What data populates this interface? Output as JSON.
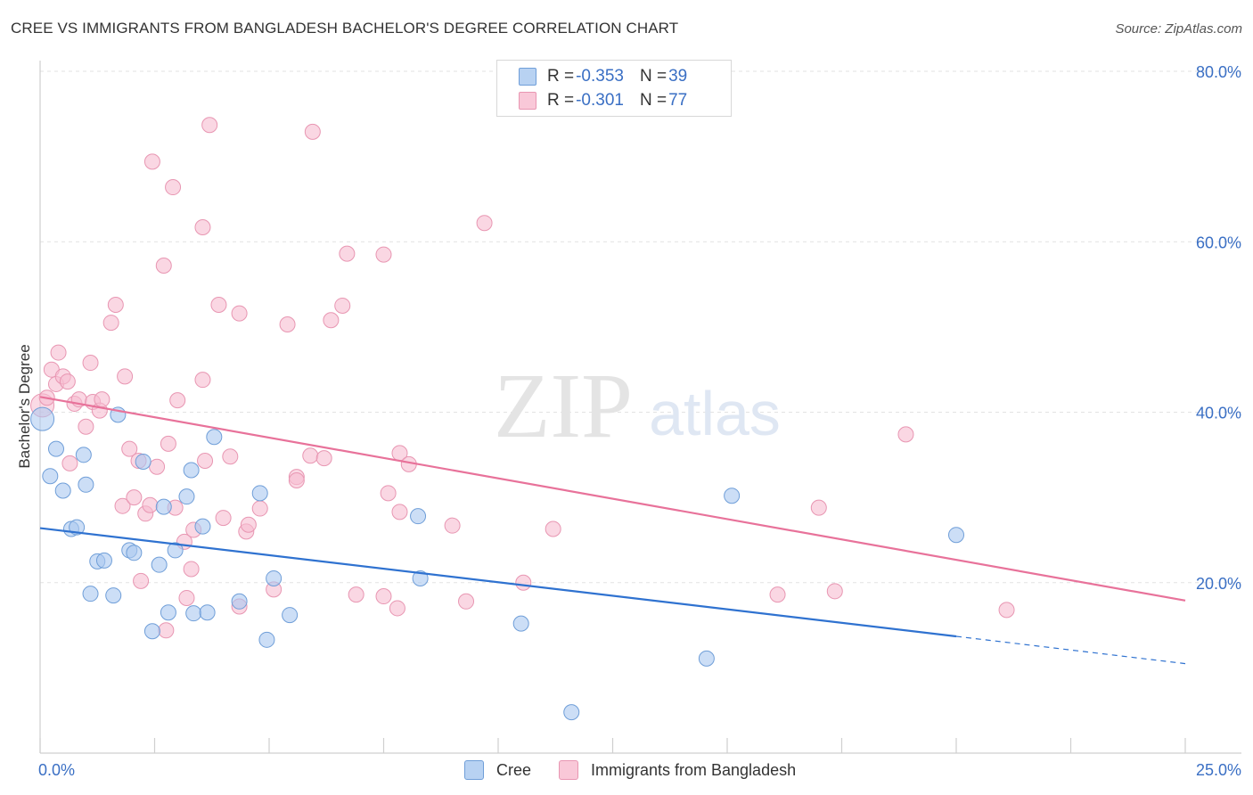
{
  "title": "CREE VS IMMIGRANTS FROM BANGLADESH BACHELOR'S DEGREE CORRELATION CHART",
  "source": "Source: ZipAtlas.com",
  "watermark": {
    "zip": "ZIP",
    "atlas": "atlas"
  },
  "legend": {
    "cree": {
      "r_label": "R = ",
      "r_value": "-0.353",
      "n_label": "N = ",
      "n_value": "39"
    },
    "bangladesh": {
      "r_label": "R = ",
      "r_value": "-0.301",
      "n_label": "N = ",
      "n_value": "77"
    }
  },
  "bottom_legend": {
    "cree": "Cree",
    "bangladesh": "Immigrants from Bangladesh"
  },
  "colors": {
    "cree_fill": "#aac8f0",
    "cree_stroke": "#6f9ed8",
    "cree_line": "#2f72d0",
    "bangladesh_fill": "#f7bcd0",
    "bangladesh_stroke": "#e896b2",
    "bangladesh_line": "#e8729a",
    "axis_value": "#3a6fc4"
  },
  "chart_data": {
    "type": "scatter",
    "title": "CREE VS IMMIGRANTS FROM BANGLADESH BACHELOR'S DEGREE CORRELATION CHART",
    "xlabel": "",
    "ylabel": "Bachelor's Degree",
    "xlim": [
      0,
      25
    ],
    "ylim": [
      0,
      80
    ],
    "x_tick_labels": [
      {
        "value": 0,
        "label": "0.0%"
      },
      {
        "value": 25,
        "label": "25.0%"
      }
    ],
    "y_tick_labels": [
      {
        "value": 20,
        "label": "20.0%"
      },
      {
        "value": 40,
        "label": "40.0%"
      },
      {
        "value": 60,
        "label": "60.0%"
      },
      {
        "value": 80,
        "label": "80.0%"
      }
    ],
    "grid": true,
    "legend_position": "top-center",
    "series": [
      {
        "name": "Cree",
        "R": -0.353,
        "N": 39,
        "trend": {
          "x0": 0.0,
          "y0": 26.4,
          "x1": 20.0,
          "y1": 13.7,
          "dash_to_x": 25.0,
          "dash_to_y": 10.5
        },
        "points": [
          [
            0.05,
            39.2
          ],
          [
            0.22,
            32.5
          ],
          [
            0.35,
            35.7
          ],
          [
            0.5,
            30.8
          ],
          [
            0.68,
            26.3
          ],
          [
            0.8,
            26.5
          ],
          [
            0.95,
            35.0
          ],
          [
            1.0,
            31.5
          ],
          [
            1.1,
            18.7
          ],
          [
            1.25,
            22.5
          ],
          [
            1.4,
            22.6
          ],
          [
            1.6,
            18.5
          ],
          [
            1.7,
            39.7
          ],
          [
            1.95,
            23.8
          ],
          [
            2.05,
            23.5
          ],
          [
            2.25,
            34.2
          ],
          [
            2.45,
            14.3
          ],
          [
            2.6,
            22.1
          ],
          [
            2.7,
            28.9
          ],
          [
            2.8,
            16.5
          ],
          [
            2.95,
            23.8
          ],
          [
            3.2,
            30.1
          ],
          [
            3.3,
            33.2
          ],
          [
            3.35,
            16.4
          ],
          [
            3.55,
            26.6
          ],
          [
            3.65,
            16.5
          ],
          [
            3.8,
            37.1
          ],
          [
            4.35,
            17.8
          ],
          [
            4.8,
            30.5
          ],
          [
            4.95,
            13.3
          ],
          [
            5.1,
            20.5
          ],
          [
            5.45,
            16.2
          ],
          [
            8.25,
            27.8
          ],
          [
            8.3,
            20.5
          ],
          [
            10.5,
            15.2
          ],
          [
            11.6,
            4.8
          ],
          [
            14.55,
            11.1
          ],
          [
            15.1,
            30.2
          ],
          [
            20.0,
            25.6
          ]
        ]
      },
      {
        "name": "Immigrants from Bangladesh",
        "R": -0.301,
        "N": 77,
        "trend": {
          "x0": 0.0,
          "y0": 41.8,
          "x1": 25.0,
          "y1": 17.9
        },
        "points": [
          [
            0.05,
            40.8
          ],
          [
            0.15,
            41.7
          ],
          [
            0.25,
            45.0
          ],
          [
            0.35,
            43.3
          ],
          [
            0.4,
            47.0
          ],
          [
            0.5,
            44.2
          ],
          [
            0.6,
            43.6
          ],
          [
            0.65,
            34.0
          ],
          [
            0.75,
            41.0
          ],
          [
            0.85,
            41.5
          ],
          [
            1.0,
            38.3
          ],
          [
            1.1,
            45.8
          ],
          [
            1.15,
            41.2
          ],
          [
            1.3,
            40.2
          ],
          [
            1.35,
            41.5
          ],
          [
            1.55,
            50.5
          ],
          [
            1.65,
            52.6
          ],
          [
            1.8,
            29.0
          ],
          [
            1.85,
            44.2
          ],
          [
            1.95,
            35.7
          ],
          [
            2.05,
            30.0
          ],
          [
            2.15,
            34.3
          ],
          [
            2.2,
            20.2
          ],
          [
            2.3,
            28.1
          ],
          [
            2.4,
            29.1
          ],
          [
            2.45,
            69.4
          ],
          [
            2.55,
            33.6
          ],
          [
            2.7,
            57.2
          ],
          [
            2.75,
            14.4
          ],
          [
            2.8,
            36.3
          ],
          [
            2.9,
            66.4
          ],
          [
            2.95,
            28.8
          ],
          [
            3.0,
            41.4
          ],
          [
            3.15,
            24.8
          ],
          [
            3.2,
            18.2
          ],
          [
            3.3,
            21.6
          ],
          [
            3.35,
            26.2
          ],
          [
            3.55,
            43.8
          ],
          [
            3.55,
            61.7
          ],
          [
            3.6,
            34.3
          ],
          [
            3.7,
            73.7
          ],
          [
            3.9,
            52.6
          ],
          [
            4.0,
            27.6
          ],
          [
            4.15,
            34.8
          ],
          [
            4.35,
            51.6
          ],
          [
            4.35,
            17.2
          ],
          [
            4.5,
            26.0
          ],
          [
            4.55,
            26.8
          ],
          [
            4.8,
            28.7
          ],
          [
            5.1,
            19.2
          ],
          [
            5.4,
            50.3
          ],
          [
            5.6,
            32.4
          ],
          [
            5.6,
            32.0
          ],
          [
            5.9,
            34.9
          ],
          [
            5.95,
            72.9
          ],
          [
            6.2,
            34.6
          ],
          [
            6.35,
            50.8
          ],
          [
            6.6,
            52.5
          ],
          [
            6.7,
            58.6
          ],
          [
            6.9,
            18.6
          ],
          [
            7.5,
            58.5
          ],
          [
            7.5,
            18.4
          ],
          [
            7.6,
            30.5
          ],
          [
            7.8,
            17.0
          ],
          [
            7.85,
            28.3
          ],
          [
            7.85,
            35.2
          ],
          [
            8.05,
            33.9
          ],
          [
            9.0,
            26.7
          ],
          [
            9.3,
            17.8
          ],
          [
            9.7,
            62.2
          ],
          [
            10.55,
            20.0
          ],
          [
            11.2,
            26.3
          ],
          [
            16.1,
            18.6
          ],
          [
            17.0,
            28.8
          ],
          [
            17.35,
            19.0
          ],
          [
            18.9,
            37.4
          ],
          [
            21.1,
            16.8
          ]
        ]
      }
    ]
  }
}
